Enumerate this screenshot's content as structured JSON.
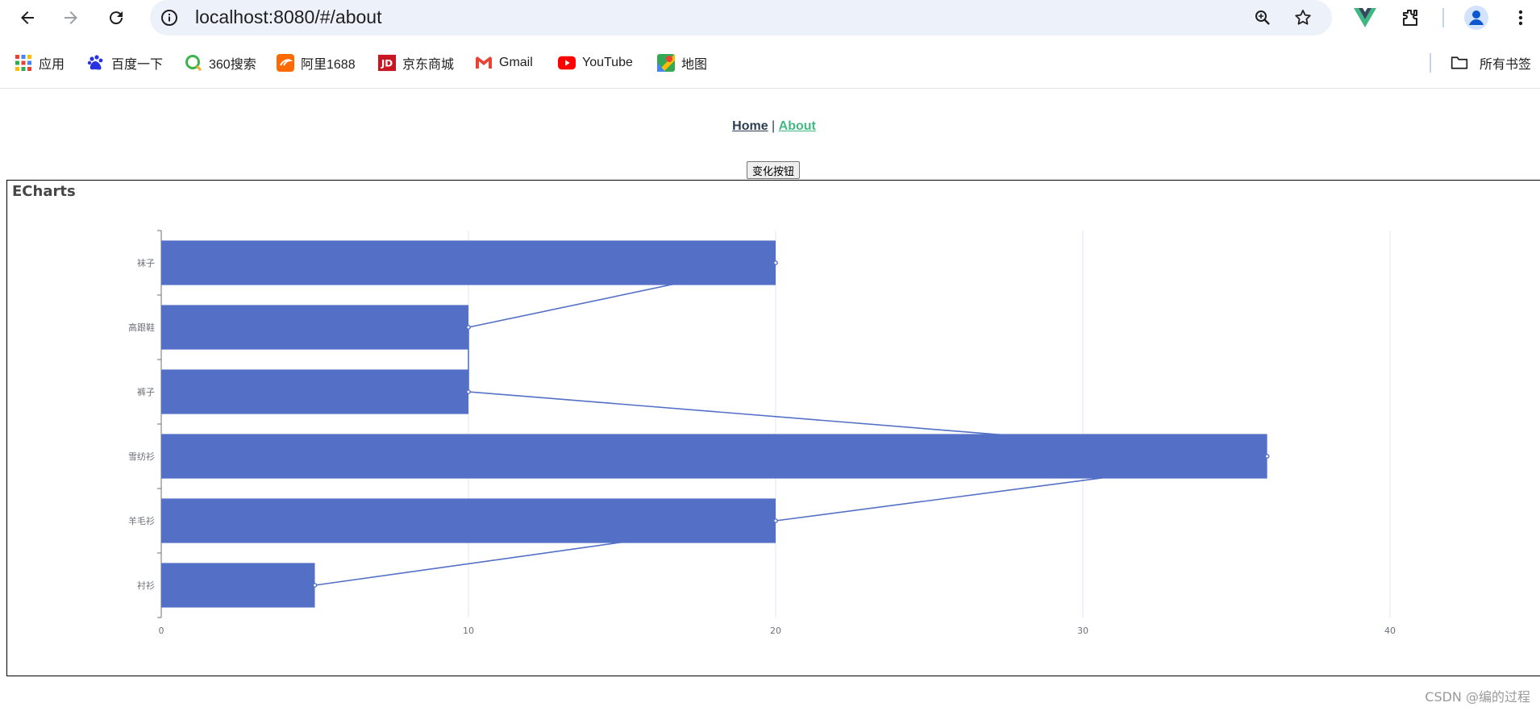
{
  "browser": {
    "url": "localhost:8080/#/about",
    "bookmarks": [
      {
        "label": "应用",
        "icon": "apps-grid-icon"
      },
      {
        "label": "百度一下",
        "icon": "baidu-paw-icon"
      },
      {
        "label": "360搜索",
        "icon": "360-search-icon"
      },
      {
        "label": "阿里1688",
        "icon": "ali-1688-icon"
      },
      {
        "label": "京东商城",
        "icon": "jd-icon"
      },
      {
        "label": "Gmail",
        "icon": "gmail-icon"
      },
      {
        "label": "YouTube",
        "icon": "youtube-icon"
      },
      {
        "label": "地图",
        "icon": "maps-icon"
      }
    ],
    "all_bookmarks_label": "所有书签"
  },
  "nav": {
    "home": "Home",
    "separator": " | ",
    "about": "About"
  },
  "button": {
    "change_label": "变化按钮"
  },
  "chart_box": {
    "title": "ECharts"
  },
  "chart_data": {
    "type": "bar",
    "orientation": "horizontal",
    "categories": [
      "衬衫",
      "羊毛衫",
      "雪纺衫",
      "裤子",
      "高跟鞋",
      "袜子"
    ],
    "series": [
      {
        "type": "bar",
        "values": [
          5,
          20,
          36,
          10,
          10,
          20
        ]
      },
      {
        "type": "line",
        "values": [
          5,
          20,
          36,
          10,
          10,
          20
        ]
      }
    ],
    "xlim": [
      0,
      40
    ],
    "x_ticks": [
      0,
      10,
      20,
      30,
      40
    ],
    "grid": "vertical"
  },
  "colors": {
    "bar": "#5470c6",
    "line": "#5470c6",
    "nav_active": "#42b983",
    "nav_text": "#2c3e50"
  },
  "watermark": "CSDN @编的过程"
}
